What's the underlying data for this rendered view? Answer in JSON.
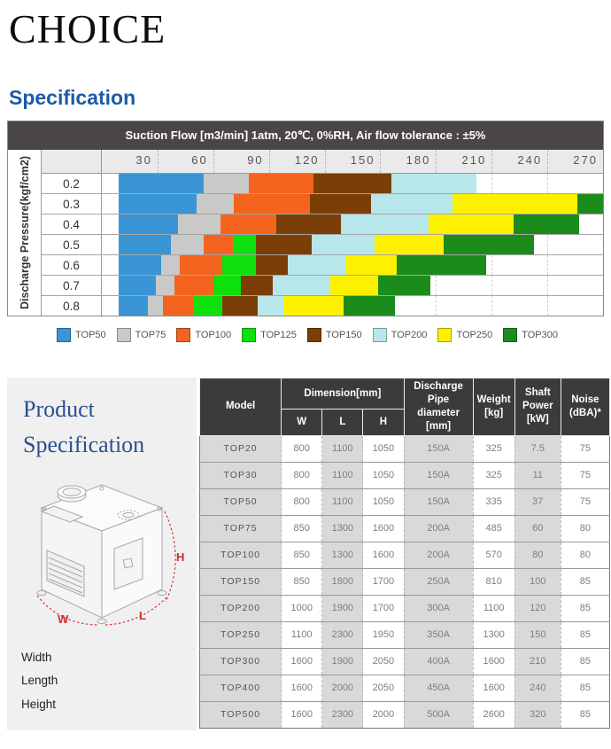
{
  "page": {
    "title": "CHOICE"
  },
  "sections": {
    "specification": "Specification"
  },
  "chart_data": {
    "type": "bar",
    "orientation": "horizontal-range",
    "title": "Suction Flow [m3/min] 1atm, 20℃, 0%RH, Air flow tolerance : ±5%",
    "xlabel": "Suction Flow [m3/min]",
    "ylabel": "Discharge Pressure(kgf/cm2)",
    "xlim": [
      0,
      270
    ],
    "x_ticks": [
      30,
      60,
      90,
      120,
      150,
      180,
      210,
      240,
      270
    ],
    "grid": "dashed-vertical",
    "legend_position": "bottom",
    "categories": [
      "0.2",
      "0.3",
      "0.4",
      "0.5",
      "0.6",
      "0.7",
      "0.8"
    ],
    "series": [
      {
        "name": "TOP50",
        "color": "#3a95d6",
        "ranges": [
          [
            9,
            55
          ],
          [
            9,
            51
          ],
          [
            9,
            41
          ],
          [
            9,
            37
          ],
          [
            9,
            32
          ],
          [
            9,
            29
          ],
          [
            9,
            25
          ]
        ]
      },
      {
        "name": "TOP75",
        "color": "#c9c9c9",
        "ranges": [
          [
            55,
            79
          ],
          [
            51,
            71
          ],
          [
            41,
            64
          ],
          [
            37,
            55
          ],
          [
            32,
            42
          ],
          [
            29,
            39
          ],
          [
            25,
            33
          ]
        ]
      },
      {
        "name": "TOP100",
        "color": "#f4641f",
        "ranges": [
          [
            79,
            114
          ],
          [
            71,
            112
          ],
          [
            64,
            94
          ],
          [
            55,
            71
          ],
          [
            42,
            65
          ],
          [
            39,
            60
          ],
          [
            33,
            49
          ]
        ]
      },
      {
        "name": "TOP125",
        "color": "#0de00d",
        "ranges": [
          null,
          null,
          null,
          [
            71,
            83
          ],
          [
            65,
            83
          ],
          [
            60,
            75
          ],
          [
            49,
            65
          ]
        ]
      },
      {
        "name": "TOP150",
        "color": "#7b3e06",
        "ranges": [
          [
            114,
            156
          ],
          [
            112,
            145
          ],
          [
            94,
            129
          ],
          [
            83,
            113
          ],
          [
            83,
            100
          ],
          [
            75,
            92
          ],
          [
            65,
            84
          ]
        ]
      },
      {
        "name": "TOP200",
        "color": "#b7e7ea",
        "ranges": [
          [
            156,
            202
          ],
          [
            145,
            189
          ],
          [
            129,
            176
          ],
          [
            113,
            147
          ],
          [
            100,
            131
          ],
          [
            92,
            123
          ],
          [
            84,
            98
          ]
        ]
      },
      {
        "name": "TOP250",
        "color": "#fdf100",
        "ranges": [
          null,
          [
            189,
            256
          ],
          [
            176,
            222
          ],
          [
            147,
            184
          ],
          [
            131,
            159
          ],
          [
            123,
            149
          ],
          [
            98,
            130
          ]
        ]
      },
      {
        "name": "TOP300",
        "color": "#1b8c1b",
        "ranges": [
          null,
          [
            256,
            270
          ],
          [
            222,
            257
          ],
          [
            184,
            233
          ],
          [
            159,
            207
          ],
          [
            149,
            177
          ],
          [
            130,
            158
          ]
        ]
      }
    ]
  },
  "product": {
    "title_line1": "Product",
    "title_line2": "Specification",
    "dim_w": "W",
    "dim_l": "L",
    "dim_h": "H",
    "labels": [
      "Width",
      "Length",
      "Height"
    ]
  },
  "table": {
    "header": {
      "model": "Model",
      "dimension": "Dimension[mm]",
      "w": "W",
      "l": "L",
      "h": "H",
      "discharge": "Discharge Pipe diameter [mm]",
      "weight": "Weight [kg]",
      "shaft": "Shaft Power [kW]",
      "noise": "Noise (dBA)*"
    },
    "rows": [
      [
        "TOP20",
        "800",
        "1100",
        "1050",
        "150A",
        "325",
        "7.5",
        "75"
      ],
      [
        "TOP30",
        "800",
        "1100",
        "1050",
        "150A",
        "325",
        "11",
        "75"
      ],
      [
        "TOP50",
        "800",
        "1100",
        "1050",
        "150A",
        "335",
        "37",
        "75"
      ],
      [
        "TOP75",
        "850",
        "1300",
        "1600",
        "200A",
        "485",
        "60",
        "80"
      ],
      [
        "TOP100",
        "850",
        "1300",
        "1600",
        "200A",
        "570",
        "80",
        "80"
      ],
      [
        "TOP150",
        "850",
        "1800",
        "1700",
        "250A",
        "810",
        "100",
        "85"
      ],
      [
        "TOP200",
        "1000",
        "1900",
        "1700",
        "300A",
        "1100",
        "120",
        "85"
      ],
      [
        "TOP250",
        "1100",
        "2300",
        "1950",
        "350A",
        "1300",
        "150",
        "85"
      ],
      [
        "TOP300",
        "1600",
        "1900",
        "2050",
        "400A",
        "1600",
        "210",
        "85"
      ],
      [
        "TOP400",
        "1600",
        "2000",
        "2050",
        "450A",
        "1600",
        "240",
        "85"
      ],
      [
        "TOP500",
        "1600",
        "2300",
        "2000",
        "500A",
        "2600",
        "320",
        "85"
      ]
    ]
  }
}
